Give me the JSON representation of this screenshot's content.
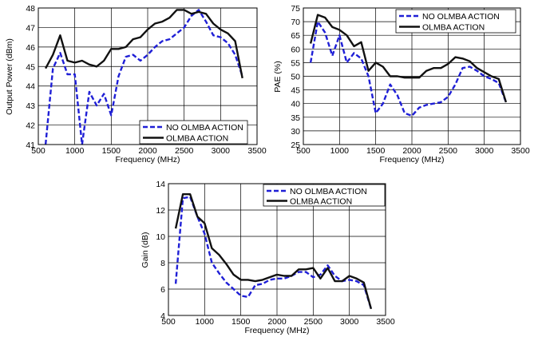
{
  "colors": {
    "dashed": "#1f1fd6",
    "solid": "#111111"
  },
  "chart_data": [
    {
      "type": "line",
      "xlabel": "Frequency (MHz)",
      "ylabel": "Output Power (dBm)",
      "xlim": [
        500,
        3500
      ],
      "ylim": [
        41,
        48
      ],
      "xticks": [
        "500",
        "1000",
        "1500",
        "2000",
        "2500",
        "3000",
        "3500"
      ],
      "yticks": [
        "41",
        "42",
        "43",
        "44",
        "45",
        "46",
        "47",
        "48"
      ],
      "grid": true,
      "legend_position": "bottom-center",
      "series": [
        {
          "name": "NO OLMBA ACTION",
          "style": "dashed",
          "x": [
            600,
            700,
            800,
            900,
            1000,
            1100,
            1200,
            1300,
            1400,
            1500,
            1600,
            1700,
            1800,
            1900,
            2000,
            2100,
            2200,
            2300,
            2400,
            2500,
            2600,
            2700,
            2800,
            2900,
            3000,
            3100,
            3200,
            3300
          ],
          "y": [
            41.0,
            44.9,
            45.7,
            44.6,
            44.6,
            41.0,
            43.7,
            43.0,
            43.6,
            42.5,
            44.5,
            45.5,
            45.6,
            45.3,
            45.6,
            46.0,
            46.3,
            46.4,
            46.7,
            47.0,
            47.6,
            47.9,
            47.3,
            46.6,
            46.5,
            46.2,
            45.6,
            44.5
          ]
        },
        {
          "name": "OLMBA ACTION",
          "style": "solid",
          "x": [
            600,
            700,
            800,
            900,
            1000,
            1100,
            1200,
            1300,
            1400,
            1500,
            1600,
            1700,
            1800,
            1900,
            2000,
            2100,
            2200,
            2300,
            2400,
            2500,
            2600,
            2700,
            2800,
            2900,
            3000,
            3100,
            3200,
            3300
          ],
          "y": [
            44.9,
            45.6,
            46.6,
            45.3,
            45.2,
            45.3,
            45.1,
            45.0,
            45.3,
            45.9,
            45.9,
            46.0,
            46.4,
            46.5,
            46.9,
            47.2,
            47.3,
            47.5,
            47.9,
            47.9,
            47.7,
            47.8,
            47.7,
            47.2,
            46.9,
            46.7,
            46.3,
            44.4
          ]
        }
      ]
    },
    {
      "type": "line",
      "xlabel": "Frequency (MHz)",
      "ylabel": "PAE (%)",
      "xlim": [
        500,
        3500
      ],
      "ylim": [
        25,
        75
      ],
      "xticks": [
        "500",
        "1000",
        "1500",
        "2000",
        "2500",
        "3000",
        "3500"
      ],
      "yticks": [
        "25",
        "30",
        "35",
        "40",
        "45",
        "50",
        "55",
        "60",
        "65",
        "70",
        "75"
      ],
      "grid": true,
      "legend_position": "top-right",
      "series": [
        {
          "name": "NO OLMBA ACTION",
          "style": "dashed",
          "x": [
            600,
            700,
            800,
            900,
            1000,
            1100,
            1200,
            1300,
            1400,
            1500,
            1600,
            1700,
            1800,
            1900,
            2000,
            2100,
            2200,
            2300,
            2400,
            2500,
            2600,
            2700,
            2800,
            2900,
            3000,
            3100,
            3200,
            3300
          ],
          "y": [
            55.0,
            70.0,
            66.0,
            57.5,
            65.0,
            55.0,
            58.5,
            56.5,
            50.0,
            36.5,
            40.0,
            47.0,
            43.0,
            36.5,
            35.5,
            38.5,
            39.5,
            40.0,
            40.5,
            42.5,
            47.0,
            53.0,
            53.5,
            52.0,
            50.0,
            49.0,
            47.5,
            40.5
          ]
        },
        {
          "name": "OLMBA ACTION",
          "style": "solid",
          "x": [
            600,
            700,
            800,
            900,
            1000,
            1100,
            1200,
            1300,
            1400,
            1500,
            1600,
            1700,
            1800,
            1900,
            2000,
            2100,
            2200,
            2300,
            2400,
            2500,
            2600,
            2700,
            2800,
            2900,
            3000,
            3100,
            3200,
            3300
          ],
          "y": [
            62.0,
            72.5,
            71.5,
            68.0,
            67.0,
            65.0,
            61.0,
            62.5,
            52.0,
            55.0,
            53.5,
            50.0,
            50.0,
            49.5,
            49.5,
            49.5,
            52.0,
            53.0,
            53.0,
            54.5,
            57.0,
            56.5,
            55.5,
            53.0,
            51.5,
            50.0,
            49.0,
            40.5
          ]
        }
      ]
    },
    {
      "type": "line",
      "xlabel": "Frequency (MHz)",
      "ylabel": "Gain (dB)",
      "xlim": [
        500,
        3500
      ],
      "ylim": [
        4,
        14
      ],
      "xticks": [
        "500",
        "1000",
        "1500",
        "2000",
        "2500",
        "3000",
        "3500"
      ],
      "yticks": [
        "4",
        "6",
        "8",
        "10",
        "12",
        "14"
      ],
      "grid": true,
      "legend_position": "top-right",
      "series": [
        {
          "name": "NO OLMBA ACTION",
          "style": "dashed",
          "x": [
            600,
            700,
            800,
            900,
            1000,
            1100,
            1200,
            1300,
            1400,
            1500,
            1600,
            1700,
            1800,
            1900,
            2000,
            2100,
            2200,
            2300,
            2400,
            2500,
            2600,
            2700,
            2800,
            2900,
            3000,
            3100,
            3200,
            3300
          ],
          "y": [
            6.4,
            12.9,
            13.0,
            11.5,
            10.2,
            8.0,
            7.2,
            6.5,
            6.0,
            5.5,
            5.4,
            6.3,
            6.4,
            6.7,
            6.8,
            6.8,
            7.0,
            7.3,
            7.3,
            6.9,
            7.1,
            7.8,
            7.0,
            6.6,
            6.7,
            6.6,
            6.3,
            4.5
          ]
        },
        {
          "name": "OLMBA ACTION",
          "style": "solid",
          "x": [
            600,
            700,
            800,
            900,
            1000,
            1100,
            1200,
            1300,
            1400,
            1500,
            1600,
            1700,
            1800,
            1900,
            2000,
            2100,
            2200,
            2300,
            2400,
            2500,
            2600,
            2700,
            2800,
            2900,
            3000,
            3100,
            3200,
            3300
          ],
          "y": [
            10.6,
            13.2,
            13.2,
            11.5,
            11.0,
            9.1,
            8.6,
            7.9,
            7.1,
            6.7,
            6.7,
            6.6,
            6.7,
            6.9,
            7.1,
            7.0,
            7.0,
            7.5,
            7.5,
            7.6,
            6.8,
            7.6,
            6.6,
            6.6,
            7.0,
            6.8,
            6.5,
            4.5
          ]
        }
      ]
    }
  ]
}
